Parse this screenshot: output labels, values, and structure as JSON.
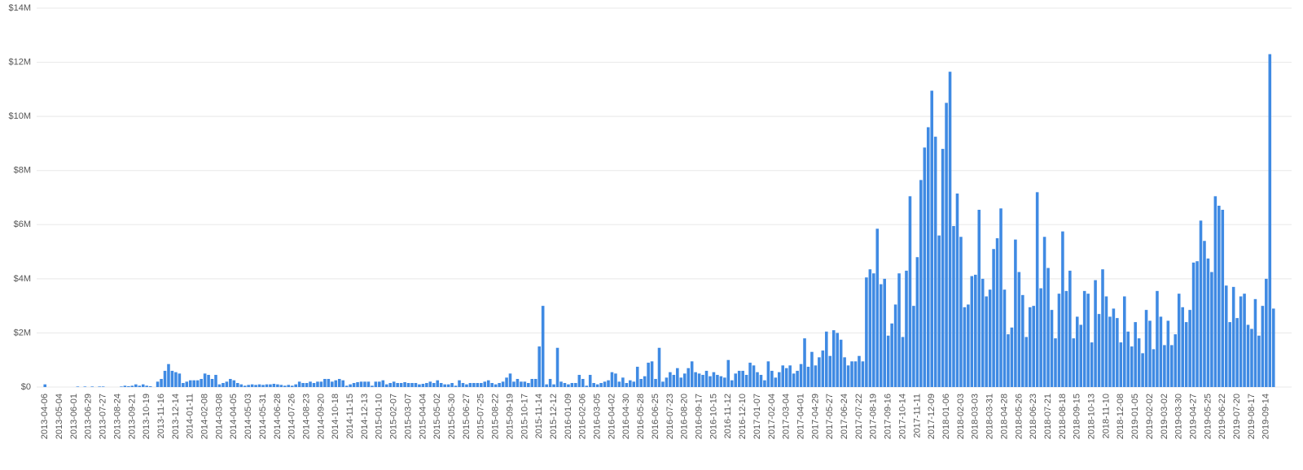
{
  "chart_data": {
    "type": "bar",
    "color": "#3f8ae3",
    "grid": true,
    "ylim": [
      0,
      14
    ],
    "yticks": [
      {
        "value": 0,
        "label": "$0"
      },
      {
        "value": 2,
        "label": "$2M"
      },
      {
        "value": 4,
        "label": "$4M"
      },
      {
        "value": 6,
        "label": "$6M"
      },
      {
        "value": 8,
        "label": "$8M"
      },
      {
        "value": 10,
        "label": "$10M"
      },
      {
        "value": 12,
        "label": "$12M"
      },
      {
        "value": 14,
        "label": "$14M"
      }
    ],
    "categories": [
      "2013-04-06",
      null,
      null,
      null,
      "2013-05-04",
      null,
      null,
      null,
      "2013-06-01",
      null,
      null,
      null,
      "2013-06-29",
      null,
      null,
      null,
      "2013-07-27",
      null,
      null,
      null,
      "2013-08-24",
      null,
      null,
      null,
      "2013-09-21",
      null,
      null,
      null,
      "2013-10-19",
      null,
      null,
      null,
      "2013-11-16",
      null,
      null,
      null,
      "2013-12-14",
      null,
      null,
      null,
      "2014-01-11",
      null,
      null,
      null,
      "2014-02-08",
      null,
      null,
      null,
      "2014-03-08",
      null,
      null,
      null,
      "2014-04-05",
      null,
      null,
      null,
      "2014-05-03",
      null,
      null,
      null,
      "2014-05-31",
      null,
      null,
      null,
      "2014-06-28",
      null,
      null,
      null,
      "2014-07-26",
      null,
      null,
      null,
      "2014-08-23",
      null,
      null,
      null,
      "2014-09-20",
      null,
      null,
      null,
      "2014-10-18",
      null,
      null,
      null,
      "2014-11-15",
      null,
      null,
      null,
      "2014-12-13",
      null,
      null,
      null,
      "2015-01-10",
      null,
      null,
      null,
      "2015-02-07",
      null,
      null,
      null,
      "2015-03-07",
      null,
      null,
      null,
      "2015-04-04",
      null,
      null,
      null,
      "2015-05-02",
      null,
      null,
      null,
      "2015-05-30",
      null,
      null,
      null,
      "2015-06-27",
      null,
      null,
      null,
      "2015-07-25",
      null,
      null,
      null,
      "2015-08-22",
      null,
      null,
      null,
      "2015-09-19",
      null,
      null,
      null,
      "2015-10-17",
      null,
      null,
      null,
      "2015-11-14",
      null,
      null,
      null,
      "2015-12-12",
      null,
      null,
      null,
      "2016-01-09",
      null,
      null,
      null,
      "2016-02-06",
      null,
      null,
      null,
      "2016-03-05",
      null,
      null,
      null,
      "2016-04-02",
      null,
      null,
      null,
      "2016-04-30",
      null,
      null,
      null,
      "2016-05-28",
      null,
      null,
      null,
      "2016-06-25",
      null,
      null,
      null,
      "2016-07-23",
      null,
      null,
      null,
      "2016-08-20",
      null,
      null,
      null,
      "2016-09-17",
      null,
      null,
      null,
      "2016-10-15",
      null,
      null,
      null,
      "2016-11-12",
      null,
      null,
      null,
      "2016-12-10",
      null,
      null,
      null,
      "2017-01-07",
      null,
      null,
      null,
      "2017-02-04",
      null,
      null,
      null,
      "2017-03-04",
      null,
      null,
      null,
      "2017-04-01",
      null,
      null,
      null,
      "2017-04-29",
      null,
      null,
      null,
      "2017-05-27",
      null,
      null,
      null,
      "2017-06-24",
      null,
      null,
      null,
      "2017-07-22",
      null,
      null,
      null,
      "2017-08-19",
      null,
      null,
      null,
      "2017-09-16",
      null,
      null,
      null,
      "2017-10-14",
      null,
      null,
      null,
      "2017-11-11",
      null,
      null,
      null,
      "2017-12-09",
      null,
      null,
      null,
      "2018-01-06",
      null,
      null,
      null,
      "2018-02-03",
      null,
      null,
      null,
      "2018-03-03",
      null,
      null,
      null,
      "2018-03-31",
      null,
      null,
      null,
      "2018-04-28",
      null,
      null,
      null,
      "2018-05-26",
      null,
      null,
      null,
      "2018-06-23",
      null,
      null,
      null,
      "2018-07-21",
      null,
      null,
      null,
      "2018-08-18",
      null,
      null,
      null,
      "2018-09-15",
      null,
      null,
      null,
      "2018-10-13",
      null,
      null,
      null,
      "2018-11-10",
      null,
      null,
      null,
      "2018-12-08",
      null,
      null,
      null,
      "2019-01-05",
      null,
      null,
      null,
      "2019-02-02",
      null,
      null,
      null,
      "2019-03-02",
      null,
      null,
      null,
      "2019-03-30",
      null,
      null,
      null,
      "2019-04-27",
      null,
      null,
      null,
      "2019-05-25",
      null,
      null,
      null,
      "2019-06-22",
      null,
      null,
      null,
      "2019-07-20",
      null,
      null,
      null,
      "2019-08-17",
      null,
      null,
      null,
      "2019-09-14",
      null,
      null
    ],
    "values": [
      0.1,
      0,
      0,
      0,
      0,
      0,
      0,
      0,
      0,
      0.02,
      0,
      0.02,
      0,
      0.02,
      0,
      0.02,
      0.02,
      0,
      0,
      0,
      0,
      0.02,
      0.05,
      0.03,
      0.05,
      0.1,
      0.05,
      0.1,
      0.05,
      0.03,
      0,
      0.2,
      0.3,
      0.6,
      0.85,
      0.6,
      0.55,
      0.5,
      0.15,
      0.2,
      0.25,
      0.25,
      0.25,
      0.3,
      0.5,
      0.45,
      0.3,
      0.45,
      0.1,
      0.15,
      0.2,
      0.3,
      0.25,
      0.15,
      0.1,
      0.05,
      0.08,
      0.1,
      0.08,
      0.1,
      0.08,
      0.1,
      0.1,
      0.12,
      0.1,
      0.08,
      0.05,
      0.08,
      0.05,
      0.1,
      0.2,
      0.15,
      0.15,
      0.2,
      0.15,
      0.2,
      0.2,
      0.3,
      0.3,
      0.2,
      0.25,
      0.3,
      0.25,
      0.05,
      0.1,
      0.15,
      0.18,
      0.2,
      0.2,
      0.2,
      0.05,
      0.2,
      0.2,
      0.25,
      0.1,
      0.15,
      0.2,
      0.15,
      0.15,
      0.18,
      0.15,
      0.15,
      0.15,
      0.1,
      0.12,
      0.15,
      0.2,
      0.15,
      0.25,
      0.15,
      0.1,
      0.1,
      0.15,
      0.05,
      0.25,
      0.15,
      0.1,
      0.15,
      0.15,
      0.15,
      0.15,
      0.2,
      0.25,
      0.15,
      0.1,
      0.15,
      0.2,
      0.35,
      0.5,
      0.2,
      0.3,
      0.2,
      0.2,
      0.15,
      0.3,
      0.3,
      1.5,
      3.0,
      0.1,
      0.3,
      0.1,
      1.45,
      0.2,
      0.15,
      0.1,
      0.15,
      0.15,
      0.45,
      0.3,
      0.05,
      0.45,
      0.15,
      0.1,
      0.15,
      0.2,
      0.25,
      0.55,
      0.5,
      0.2,
      0.35,
      0.15,
      0.25,
      0.2,
      0.75,
      0.3,
      0.4,
      0.9,
      0.95,
      0.3,
      1.45,
      0.2,
      0.35,
      0.55,
      0.45,
      0.7,
      0.35,
      0.5,
      0.7,
      0.95,
      0.55,
      0.5,
      0.45,
      0.6,
      0.4,
      0.55,
      0.45,
      0.4,
      0.35,
      1.0,
      0.25,
      0.5,
      0.6,
      0.6,
      0.45,
      0.9,
      0.8,
      0.55,
      0.45,
      0.25,
      0.95,
      0.6,
      0.35,
      0.55,
      0.8,
      0.7,
      0.8,
      0.5,
      0.6,
      0.85,
      1.8,
      0.75,
      1.3,
      0.8,
      1.1,
      1.35,
      2.05,
      1.15,
      2.1,
      2.0,
      1.75,
      1.1,
      0.8,
      0.95,
      0.95,
      1.15,
      0.95,
      4.05,
      4.35,
      4.2,
      5.85,
      3.8,
      4.0,
      1.9,
      2.35,
      3.05,
      4.2,
      1.85,
      4.3,
      7.05,
      3.0,
      4.8,
      7.65,
      8.85,
      9.6,
      10.95,
      9.25,
      5.6,
      8.8,
      10.5,
      11.65,
      5.95,
      7.15,
      5.55,
      2.95,
      3.05,
      4.1,
      4.15,
      6.55,
      4.0,
      3.35,
      3.6,
      5.1,
      5.5,
      6.6,
      3.6,
      1.95,
      2.2,
      5.45,
      4.25,
      3.4,
      1.85,
      2.95,
      3.0,
      7.2,
      3.65,
      5.55,
      4.4,
      2.85,
      1.8,
      3.45,
      5.75,
      3.55,
      4.3,
      1.8,
      2.6,
      2.3,
      3.55,
      3.45,
      1.65,
      3.95,
      2.7,
      4.35,
      3.35,
      2.6,
      2.9,
      2.55,
      1.65,
      3.35,
      2.05,
      1.5,
      2.4,
      1.8,
      1.25,
      2.85,
      2.45,
      1.4,
      3.55,
      2.6,
      1.55,
      2.45,
      1.55,
      1.95,
      3.45,
      2.95,
      2.4,
      2.85,
      4.6,
      4.65,
      6.15,
      5.4,
      4.75,
      4.25,
      7.05,
      6.7,
      6.55,
      3.75,
      2.4,
      3.7,
      2.55,
      3.35,
      3.45,
      2.3,
      2.15,
      3.25,
      1.9,
      3.0,
      4.0,
      12.3,
      2.9
    ]
  }
}
